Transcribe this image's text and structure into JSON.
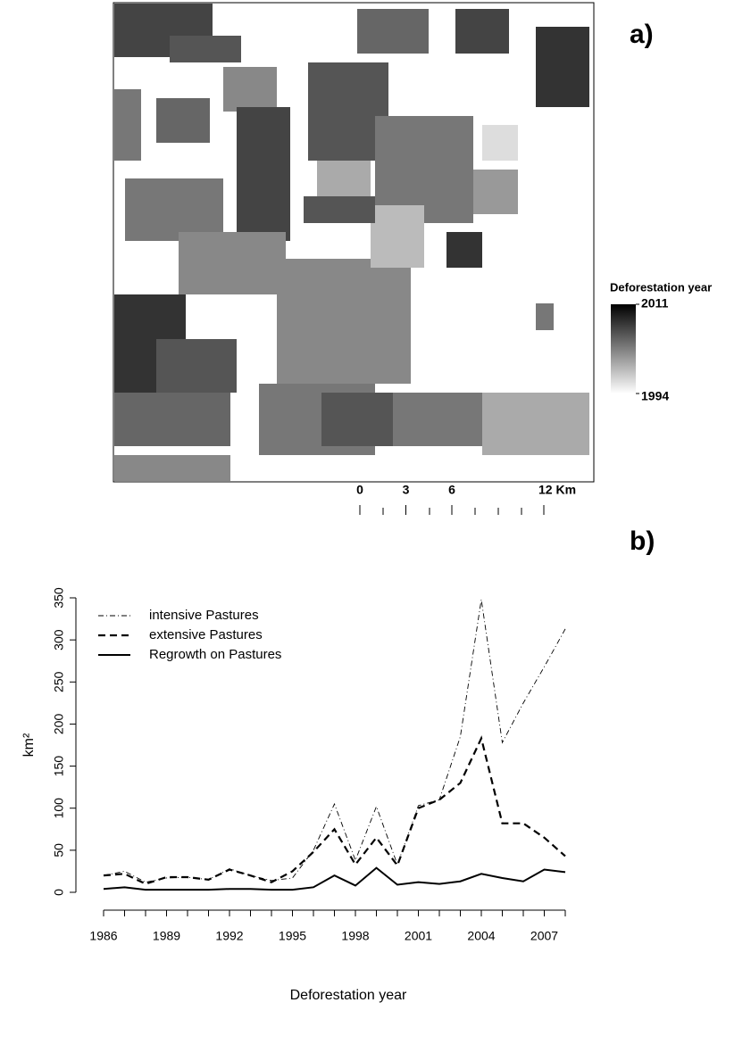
{
  "map": {
    "label": "a)",
    "legend_title": "Deforestation year",
    "colorbar": {
      "range": [
        1994,
        2011
      ],
      "colors": [
        "#ffffff",
        "#000000"
      ],
      "ticks": [
        2011,
        1994
      ]
    },
    "scale_ticks": [
      0,
      3,
      6,
      {
        "value": 12,
        "label": "12 Km"
      }
    ],
    "scale_range": [
      0,
      12
    ]
  },
  "chart_data": {
    "type": "line",
    "label": "b)",
    "x_label": "Deforestation year",
    "y_label": "km²",
    "x": [
      1986,
      1987,
      1988,
      1989,
      1990,
      1991,
      1992,
      1993,
      1994,
      1995,
      1996,
      1997,
      1998,
      1999,
      2000,
      2001,
      2002,
      2003,
      2004,
      2005,
      2006,
      2007,
      2008
    ],
    "xlim": [
      1986,
      2008
    ],
    "xticks": [
      1986,
      1989,
      1992,
      1995,
      1998,
      2001,
      2004,
      2007
    ],
    "ylim": [
      0,
      350
    ],
    "yticks": [
      0,
      50,
      100,
      150,
      200,
      250,
      300,
      350
    ],
    "legend": "top-left",
    "series": [
      {
        "name": "intensive Pastures",
        "color": "#000000",
        "linestyle": "dashdot",
        "values": [
          20,
          25,
          12,
          17,
          18,
          15,
          28,
          20,
          14,
          17,
          50,
          105,
          38,
          102,
          33,
          103,
          110,
          185,
          348,
          178,
          225,
          268,
          313
        ]
      },
      {
        "name": "extensive Pastures",
        "color": "#000000",
        "linestyle": "dashed",
        "values": [
          20,
          22,
          10,
          18,
          18,
          15,
          27,
          20,
          12,
          25,
          48,
          75,
          33,
          65,
          32,
          100,
          110,
          130,
          183,
          82,
          82,
          65,
          43
        ]
      },
      {
        "name": "Regrowth on Pastures",
        "color": "#000000",
        "linestyle": "solid",
        "values": [
          4,
          6,
          3,
          3,
          3,
          3,
          4,
          4,
          3,
          3,
          6,
          20,
          8,
          29,
          9,
          12,
          10,
          13,
          22,
          17,
          13,
          27,
          24
        ]
      }
    ]
  }
}
